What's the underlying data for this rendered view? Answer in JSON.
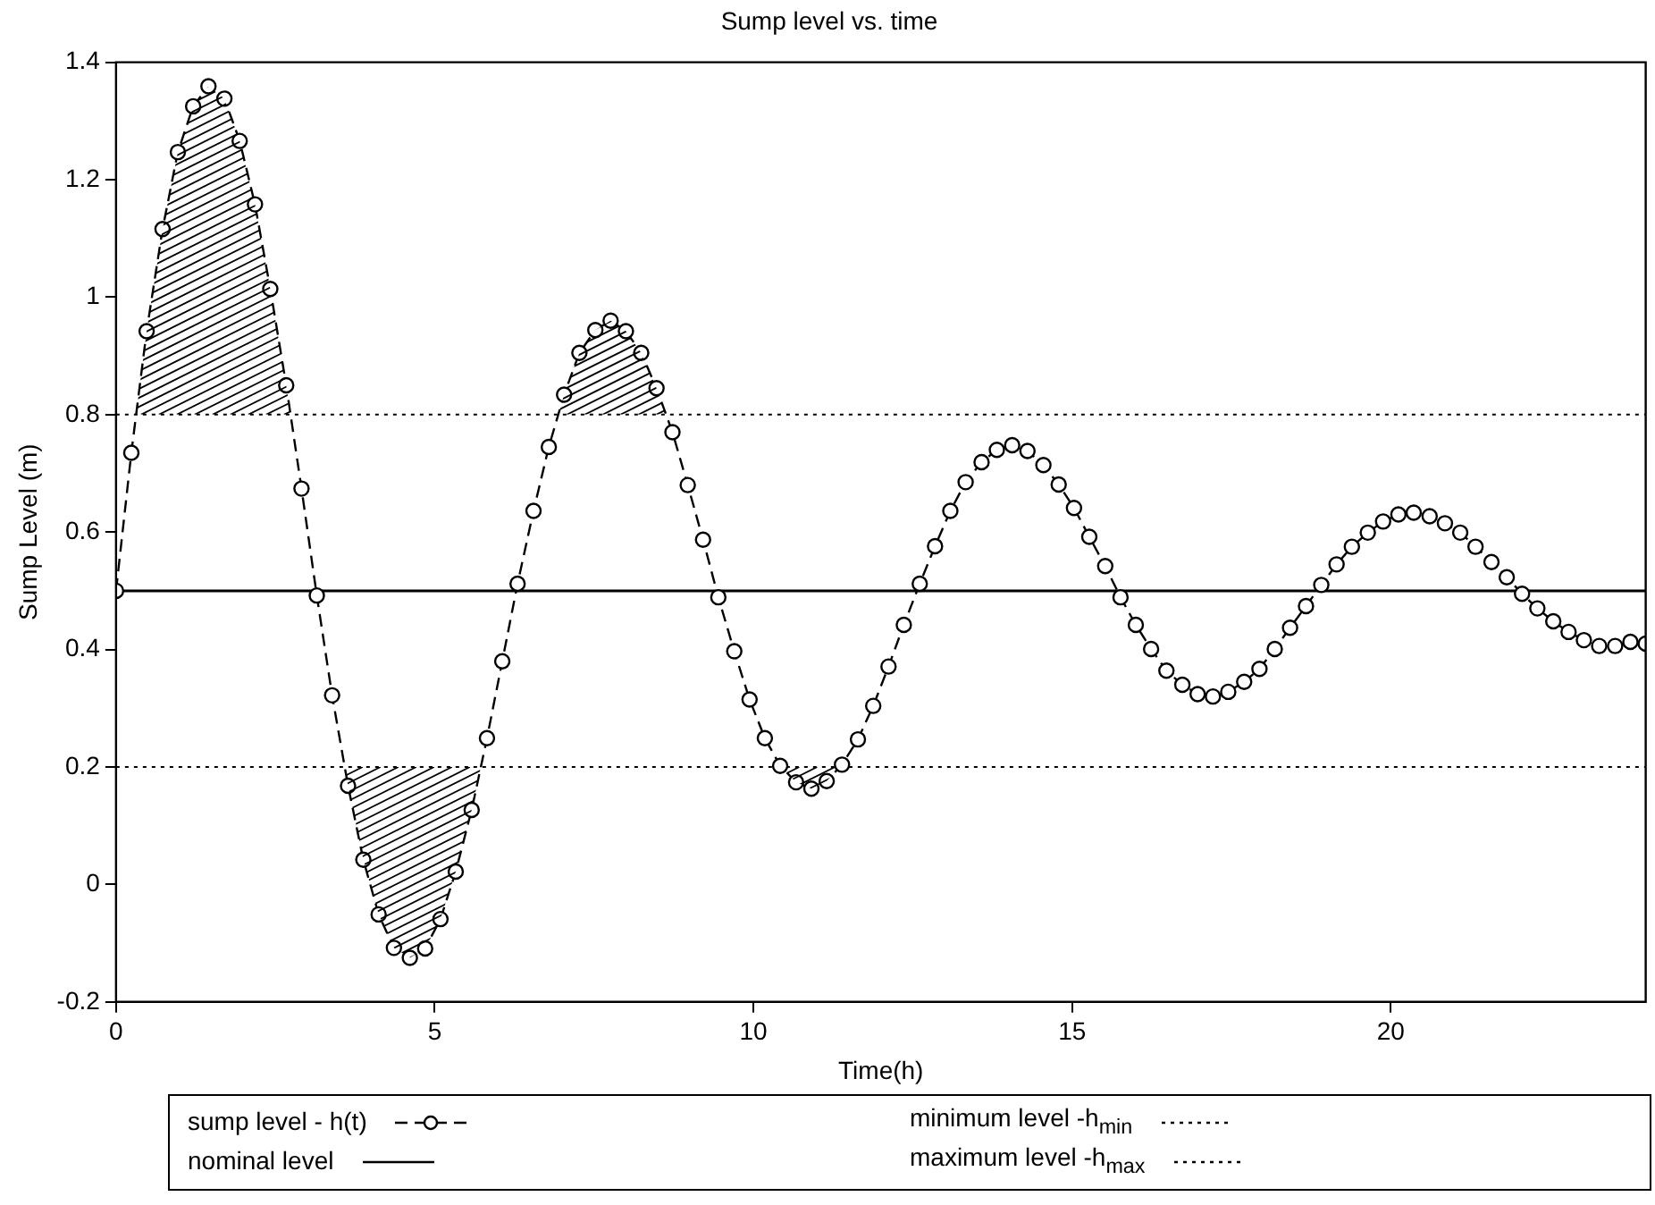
{
  "chart_data": {
    "type": "line",
    "title": "Sump level vs. time",
    "xlabel": "Time(h)",
    "ylabel": "Sump Level (m)",
    "xlim": [
      0,
      24
    ],
    "ylim": [
      -0.2,
      1.4
    ],
    "xticks": [
      0,
      5,
      10,
      15,
      20
    ],
    "yticks": [
      -0.2,
      0,
      0.2,
      0.4,
      0.6,
      0.8,
      1,
      1.2,
      1.4
    ],
    "grid": false,
    "legend": "bottom",
    "marker": "circle",
    "series": [
      {
        "name": "sump level - h(t)",
        "color": "#000000",
        "line_style": "dashed",
        "x": [
          0,
          0.24,
          0.48,
          0.73,
          0.97,
          1.21,
          1.45,
          1.7,
          1.94,
          2.18,
          2.42,
          2.67,
          2.91,
          3.15,
          3.39,
          3.64,
          3.88,
          4.12,
          4.36,
          4.61,
          4.85,
          5.09,
          5.33,
          5.58,
          5.82,
          6.06,
          6.3,
          6.55,
          6.79,
          7.03,
          7.27,
          7.52,
          7.76,
          8,
          8.24,
          8.48,
          8.73,
          8.97,
          9.21,
          9.45,
          9.7,
          9.94,
          10.18,
          10.42,
          10.67,
          10.91,
          11.15,
          11.39,
          11.64,
          11.88,
          12.12,
          12.36,
          12.61,
          12.85,
          13.09,
          13.33,
          13.58,
          13.82,
          14.06,
          14.3,
          14.55,
          14.79,
          15.03,
          15.27,
          15.52,
          15.76,
          16,
          16.24,
          16.48,
          16.73,
          16.97,
          17.21,
          17.45,
          17.7,
          17.94,
          18.18,
          18.42,
          18.67,
          18.91,
          19.15,
          19.39,
          19.64,
          19.88,
          20.12,
          20.36,
          20.61,
          20.85,
          21.09,
          21.33,
          21.58,
          21.82,
          22.06,
          22.3,
          22.55,
          22.79,
          23.03,
          23.27,
          23.52,
          23.76,
          24
        ],
        "values": [
          0.5,
          0.735,
          0.942,
          1.116,
          1.247,
          1.325,
          1.359,
          1.338,
          1.266,
          1.158,
          1.014,
          0.85,
          0.674,
          0.492,
          0.322,
          0.168,
          0.042,
          -0.051,
          -0.108,
          -0.125,
          -0.109,
          -0.059,
          0.022,
          0.127,
          0.249,
          0.38,
          0.512,
          0.636,
          0.745,
          0.834,
          0.905,
          0.944,
          0.96,
          0.942,
          0.905,
          0.845,
          0.77,
          0.68,
          0.587,
          0.489,
          0.397,
          0.315,
          0.249,
          0.202,
          0.174,
          0.163,
          0.176,
          0.204,
          0.247,
          0.304,
          0.371,
          0.442,
          0.512,
          0.576,
          0.636,
          0.685,
          0.719,
          0.74,
          0.748,
          0.738,
          0.714,
          0.681,
          0.641,
          0.592,
          0.542,
          0.489,
          0.442,
          0.401,
          0.364,
          0.34,
          0.324,
          0.32,
          0.328,
          0.345,
          0.367,
          0.401,
          0.437,
          0.474,
          0.51,
          0.545,
          0.575,
          0.599,
          0.618,
          0.63,
          0.633,
          0.627,
          0.615,
          0.599,
          0.575,
          0.549,
          0.523,
          0.495,
          0.47,
          0.448,
          0.43,
          0.416,
          0.406,
          0.406,
          0.413,
          0.41
        ]
      }
    ],
    "ref_lines": [
      {
        "axis": "y",
        "value": 0.5,
        "label": "nominal level",
        "color": "#000000",
        "line_style": "solid"
      },
      {
        "axis": "y",
        "value": 0.2,
        "label": "minimum level -h$_{min}$",
        "color": "#000000",
        "line_style": "dotted"
      },
      {
        "axis": "y",
        "value": 0.8,
        "label": "maximum level -h$_{max}$",
        "color": "#000000",
        "line_style": "dotted"
      }
    ]
  }
}
